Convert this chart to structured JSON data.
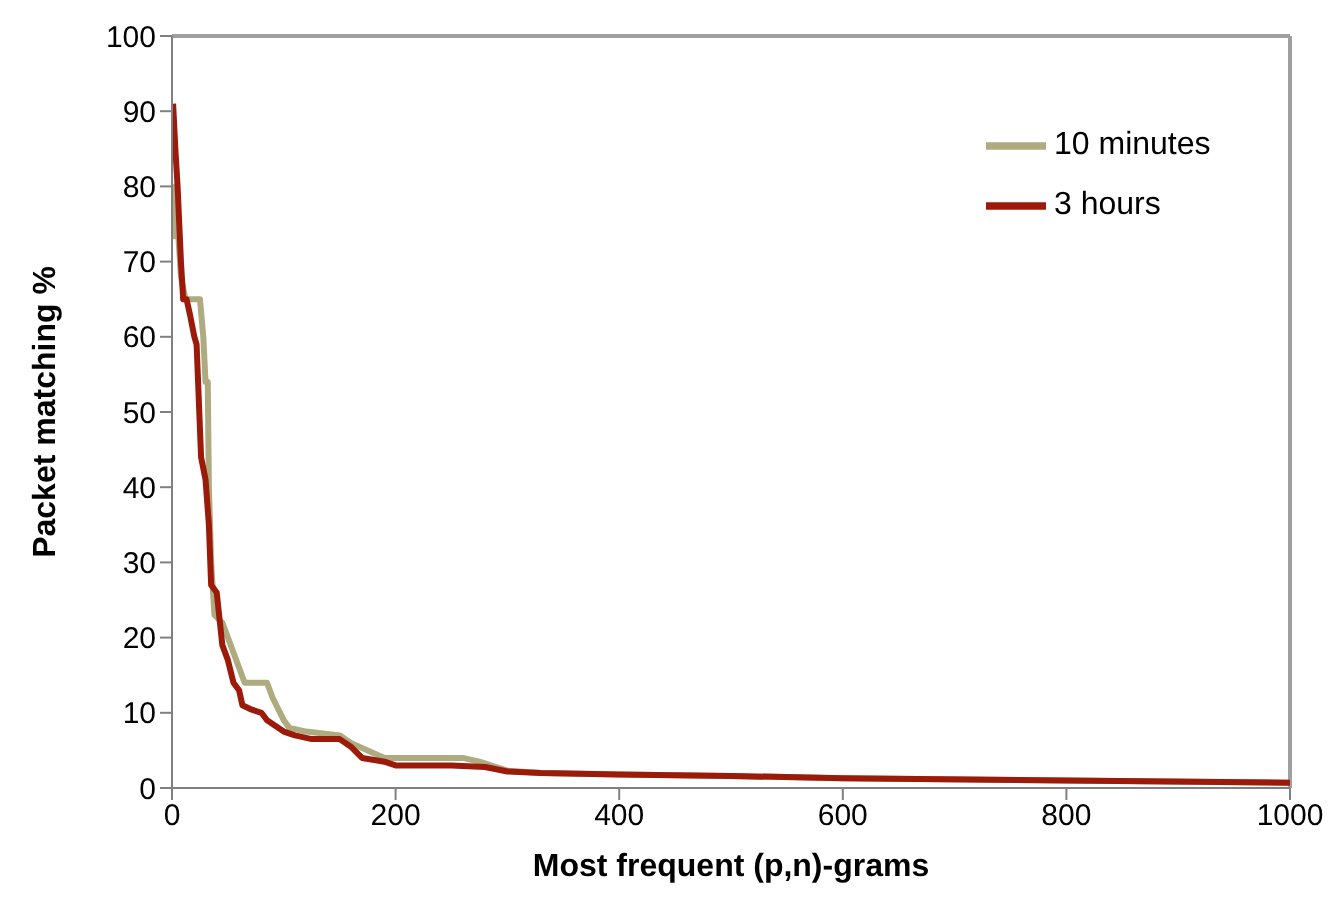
{
  "chart_data": {
    "type": "line",
    "xlabel": "Most frequent (p,n)-grams",
    "ylabel": "Packet matching %",
    "xlim": [
      0,
      1000
    ],
    "ylim": [
      0,
      100
    ],
    "xticks": [
      0,
      200,
      400,
      600,
      800,
      1000
    ],
    "yticks": [
      0,
      10,
      20,
      30,
      40,
      50,
      60,
      70,
      80,
      90,
      100
    ],
    "grid": false,
    "legend": "top right",
    "marker": "none",
    "line_style": "solid",
    "series": [
      {
        "name": "10 minutes",
        "color": "#aeab80",
        "x": [
          1,
          3,
          5,
          8,
          12,
          25,
          28,
          30,
          32,
          33,
          35,
          38,
          45,
          50,
          55,
          60,
          65,
          85,
          90,
          100,
          105,
          120,
          150,
          160,
          175,
          190,
          260,
          275,
          285,
          300,
          330,
          400,
          500,
          600,
          800,
          1000
        ],
        "values": [
          73,
          80,
          75,
          68,
          65,
          65,
          60,
          54,
          54,
          40,
          30,
          23,
          22,
          20,
          18,
          16,
          14,
          14,
          12,
          9,
          8,
          7.5,
          7,
          6,
          5,
          4,
          4,
          3.5,
          3,
          2.3,
          2,
          1.8,
          1.6,
          1.3,
          1,
          0.7
        ]
      },
      {
        "name": "3 hours",
        "color": "#9b1a0a",
        "x": [
          1,
          3,
          5,
          8,
          10,
          13,
          16,
          20,
          22,
          26,
          30,
          33,
          35,
          40,
          45,
          50,
          55,
          60,
          63,
          70,
          80,
          85,
          95,
          100,
          110,
          125,
          150,
          160,
          170,
          190,
          200,
          250,
          280,
          300,
          330,
          400,
          500,
          600,
          800,
          1000
        ],
        "values": [
          91,
          85,
          80,
          70,
          65,
          65,
          63,
          60,
          59,
          44,
          41,
          35,
          27,
          26,
          19,
          17,
          14,
          13,
          11,
          10.5,
          10,
          9,
          8,
          7.5,
          7,
          6.5,
          6.5,
          5.5,
          4,
          3.5,
          3,
          3,
          2.8,
          2.2,
          2,
          1.8,
          1.6,
          1.3,
          1,
          0.7
        ]
      }
    ]
  }
}
